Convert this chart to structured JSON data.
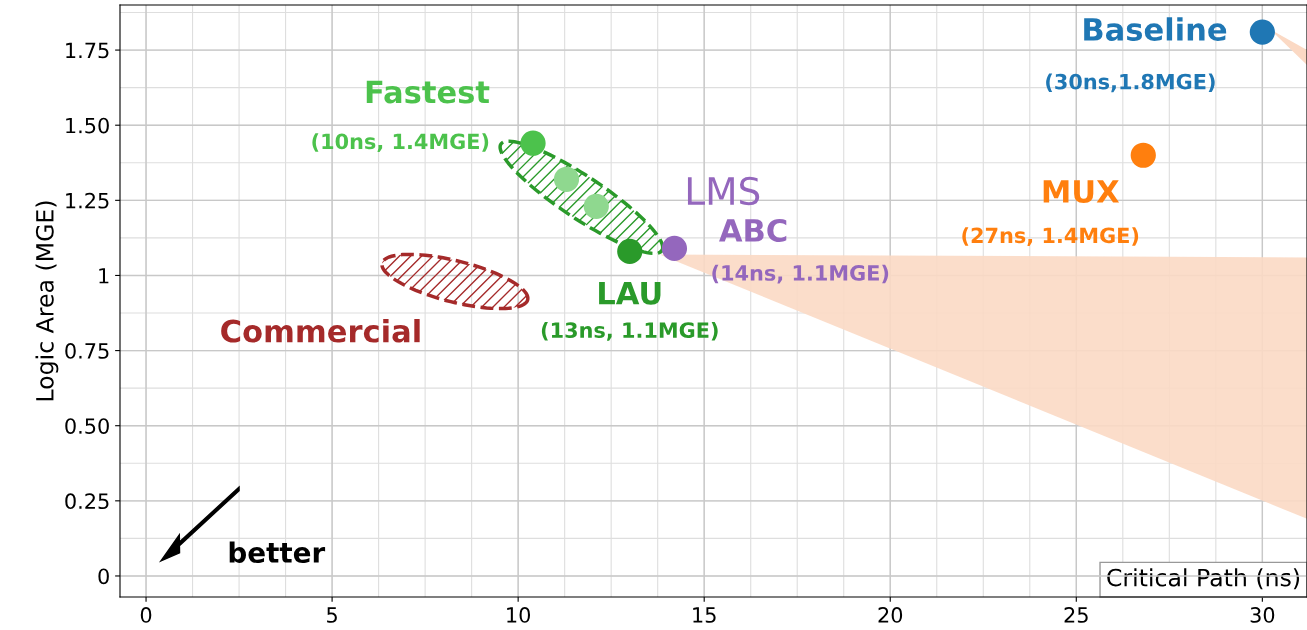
{
  "chart_data": {
    "type": "scatter",
    "xlabel": "Critical Path (ns)",
    "ylabel": "Logic Area (MGE)",
    "xlim": [
      -0.7,
      31.2
    ],
    "xticks": [
      0,
      5,
      10,
      15,
      20,
      25,
      30
    ],
    "ylim": [
      -0.07,
      1.9
    ],
    "yticks": [
      0,
      0.25,
      {
        "value": 0.5,
        "label": "0.50"
      },
      0.75,
      {
        "value": 1,
        "label": "1"
      },
      1.25,
      {
        "value": 1.5,
        "label": "1.50"
      },
      1.75
    ],
    "grid": true,
    "marker": "circle",
    "series": [
      {
        "name": "Baseline",
        "color": "#1f77b4",
        "x": [
          30
        ],
        "values": [
          1.81
        ],
        "value_labels": [
          "(30ns,1.8MGE)"
        ]
      },
      {
        "name": "MUX",
        "color": "#ff7f0e",
        "x": [
          26.8
        ],
        "values": [
          1.4
        ],
        "value_labels": [
          "(27ns, 1.4MGE)"
        ]
      },
      {
        "name": "ABC",
        "color": "#9467bd",
        "x": [
          14.2
        ],
        "values": [
          1.09
        ],
        "value_labels": [
          "(14ns, 1.1MGE)"
        ]
      },
      {
        "name": "LAU",
        "color": "#2a9a2a",
        "x": [
          13.0
        ],
        "values": [
          1.08
        ],
        "value_labels": [
          "(13ns, 1.1MGE)"
        ]
      },
      {
        "name": "Fastest",
        "color": "#4cc24c",
        "colors": [
          "#4cc24c",
          "#8fd88f",
          "#8fd88f"
        ],
        "x": [
          10.4,
          11.3,
          12.1
        ],
        "values": [
          1.44,
          1.32,
          1.23
        ],
        "value_labels": [
          "(10ns, 1.4MGE)",
          null,
          null
        ]
      }
    ],
    "annotations": [
      "LMS",
      "Commercial",
      "better"
    ]
  }
}
